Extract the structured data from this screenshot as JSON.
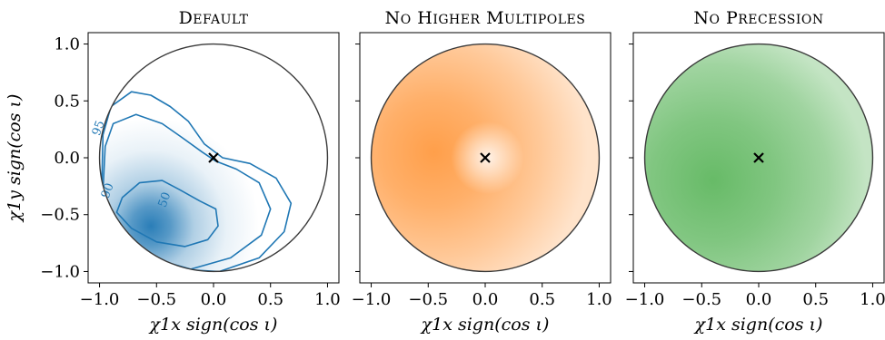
{
  "chart_data": [
    {
      "type": "heatmap",
      "title": "Default",
      "xlabel": "χ1x sign(cos ι)",
      "ylabel": "χ1y sign(cos ι)",
      "xlim": [
        -1.1,
        1.1
      ],
      "ylim": [
        -1.1,
        1.1
      ],
      "xticks": [
        "−1.0",
        "−0.5",
        "0.0",
        "0.5",
        "1.0"
      ],
      "yticks": [
        "1.0",
        "0.5",
        "0.0",
        "−0.5",
        "−1.0"
      ],
      "colormap": "#1f77b4",
      "density_peak": [
        -0.55,
        -0.6
      ],
      "injection_marker": [
        0.0,
        0.0
      ],
      "contour_levels": [
        "50",
        "90",
        "95"
      ],
      "contours": [
        {
          "level": "50",
          "label_at": [
            -0.4,
            -0.38
          ],
          "points": [
            [
              -0.8,
              -0.35
            ],
            [
              -0.65,
              -0.22
            ],
            [
              -0.45,
              -0.2
            ],
            [
              -0.3,
              -0.28
            ],
            [
              -0.12,
              -0.38
            ],
            [
              0.02,
              -0.45
            ],
            [
              0.04,
              -0.6
            ],
            [
              -0.05,
              -0.72
            ],
            [
              -0.25,
              -0.78
            ],
            [
              -0.5,
              -0.74
            ],
            [
              -0.72,
              -0.62
            ],
            [
              -0.85,
              -0.48
            ]
          ]
        },
        {
          "level": "90",
          "label_at": [
            -0.9,
            -0.3
          ],
          "points": [
            [
              -0.95,
              0.1
            ],
            [
              -0.88,
              0.3
            ],
            [
              -0.68,
              0.38
            ],
            [
              -0.45,
              0.3
            ],
            [
              -0.28,
              0.18
            ],
            [
              -0.1,
              0.05
            ],
            [
              0.02,
              -0.03
            ],
            [
              0.2,
              -0.1
            ],
            [
              0.4,
              -0.22
            ],
            [
              0.5,
              -0.45
            ],
            [
              0.42,
              -0.68
            ],
            [
              0.15,
              -0.88
            ],
            [
              -0.2,
              -0.98
            ],
            [
              -0.55,
              -0.88
            ],
            [
              -0.82,
              -0.62
            ],
            [
              -0.97,
              -0.3
            ]
          ]
        },
        {
          "level": "95",
          "label_at": [
            -0.98,
            0.25
          ],
          "points": [
            [
              -0.97,
              0.2
            ],
            [
              -0.9,
              0.45
            ],
            [
              -0.72,
              0.58
            ],
            [
              -0.55,
              0.55
            ],
            [
              -0.38,
              0.45
            ],
            [
              -0.22,
              0.32
            ],
            [
              -0.08,
              0.12
            ],
            [
              0.08,
              0.0
            ],
            [
              0.32,
              -0.05
            ],
            [
              0.55,
              -0.18
            ],
            [
              0.68,
              -0.4
            ],
            [
              0.62,
              -0.65
            ],
            [
              0.4,
              -0.88
            ],
            [
              0.05,
              -1.0
            ],
            [
              -0.3,
              -0.98
            ],
            [
              -0.62,
              -0.85
            ],
            [
              -0.86,
              -0.62
            ],
            [
              -0.98,
              -0.25
            ]
          ]
        }
      ]
    },
    {
      "type": "heatmap",
      "title": "No Higher Multipoles",
      "xlabel": "χ1x sign(cos ι)",
      "xlim": [
        -1.1,
        1.1
      ],
      "ylim": [
        -1.1,
        1.1
      ],
      "xticks": [
        "−1.0",
        "−0.5",
        "0.0",
        "0.5",
        "1.0"
      ],
      "colormap": "#ff7f0e",
      "density_peak": [
        -0.45,
        0.05
      ],
      "injection_marker": [
        0.0,
        0.0
      ]
    },
    {
      "type": "heatmap",
      "title": "No Precession",
      "xlabel": "χ1x sign(cos ι)",
      "xlim": [
        -1.1,
        1.1
      ],
      "ylim": [
        -1.1,
        1.1
      ],
      "xticks": [
        "−1.0",
        "−0.5",
        "0.0",
        "0.5",
        "1.0"
      ],
      "colormap": "#2ca02c",
      "density_peak": [
        -0.4,
        -0.2
      ],
      "injection_marker": [
        0.0,
        0.0
      ]
    }
  ]
}
